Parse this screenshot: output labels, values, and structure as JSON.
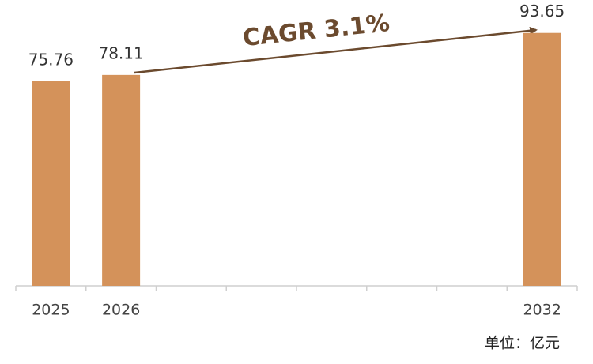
{
  "chart_data": {
    "type": "bar",
    "categories": [
      "2025",
      "2026",
      null,
      null,
      null,
      null,
      null,
      "2032"
    ],
    "values": [
      75.76,
      78.11,
      null,
      null,
      null,
      null,
      null,
      93.65
    ],
    "color": "#d4925a",
    "ylim": [
      0,
      100
    ],
    "annotation": "CAGR 3.1%",
    "unit": "单位：亿元"
  }
}
